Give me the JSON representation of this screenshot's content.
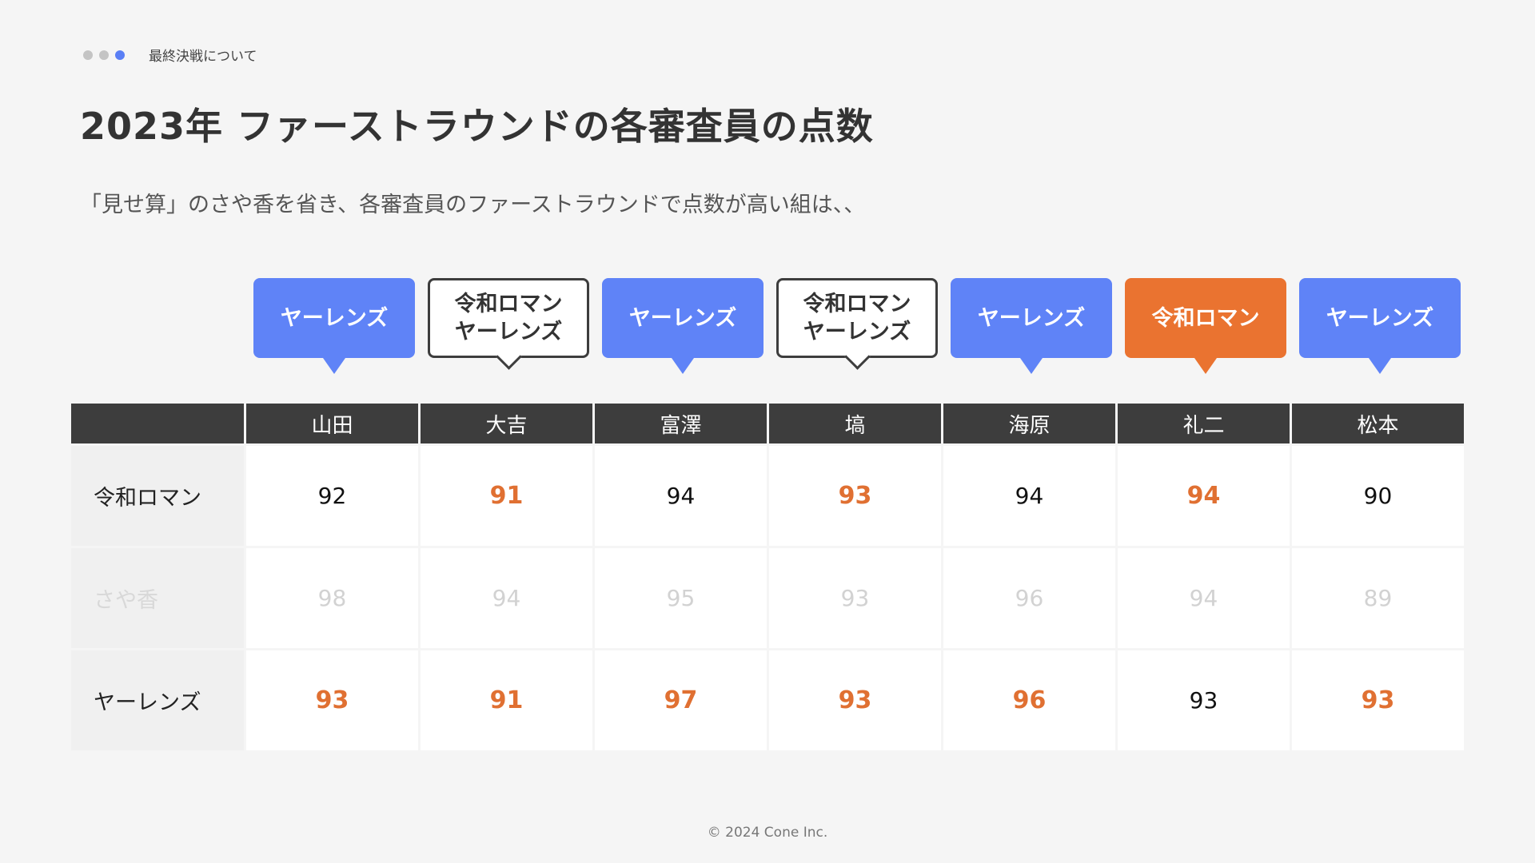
{
  "breadcrumb": {
    "label": "最終決戦について"
  },
  "page": {
    "title": "2023年 ファーストラウンドの各審査員の点数",
    "subtitle": "「見せ算」のさや香を省き、各審査員のファーストラウンドで点数が高い組は、、"
  },
  "colors": {
    "accent_blue": "#5f83f7",
    "accent_orange": "#ea7330",
    "header_dark": "#3d3d3d"
  },
  "bubbles": [
    {
      "line1": "ヤーレンズ",
      "line2": "",
      "style": "blue"
    },
    {
      "line1": "令和ロマン",
      "line2": "ヤーレンズ",
      "style": "outline"
    },
    {
      "line1": "ヤーレンズ",
      "line2": "",
      "style": "blue"
    },
    {
      "line1": "令和ロマン",
      "line2": "ヤーレンズ",
      "style": "outline"
    },
    {
      "line1": "ヤーレンズ",
      "line2": "",
      "style": "blue"
    },
    {
      "line1": "令和ロマン",
      "line2": "",
      "style": "orange"
    },
    {
      "line1": "ヤーレンズ",
      "line2": "",
      "style": "blue"
    }
  ],
  "table": {
    "judges": [
      "山田",
      "大吉",
      "富澤",
      "塙",
      "海原",
      "礼二",
      "松本"
    ],
    "rows": [
      {
        "name": "令和ロマン",
        "scores": [
          "92",
          "91",
          "94",
          "93",
          "94",
          "94",
          "90"
        ]
      },
      {
        "name": "さや香",
        "scores": [
          "98",
          "94",
          "95",
          "93",
          "96",
          "94",
          "89"
        ]
      },
      {
        "name": "ヤーレンズ",
        "scores": [
          "93",
          "91",
          "97",
          "93",
          "96",
          "93",
          "93"
        ]
      }
    ]
  },
  "footer": {
    "copyright": "© 2024 Cone Inc."
  }
}
